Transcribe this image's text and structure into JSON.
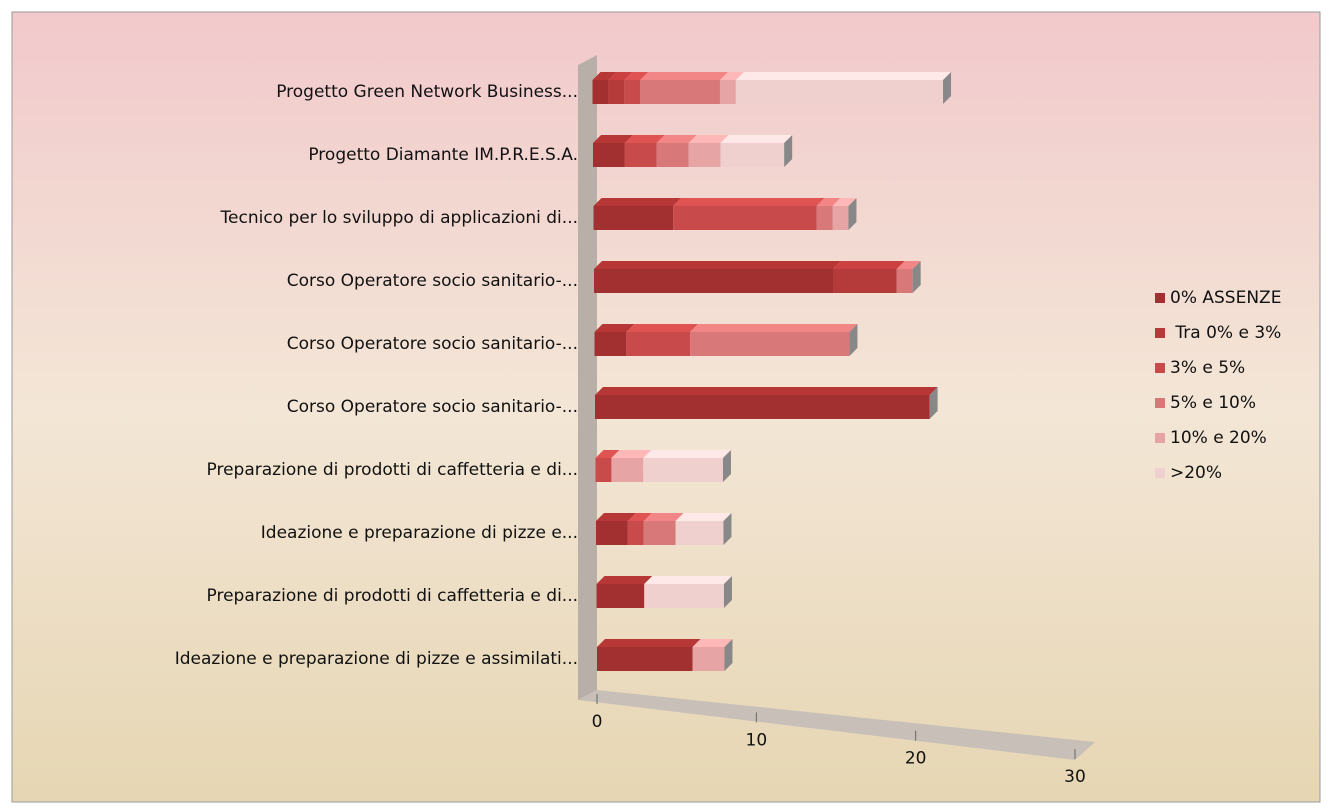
{
  "chart_data": {
    "type": "bar",
    "orientation": "horizontal",
    "stacked": true,
    "categories": [
      "Progetto Green Network Business...",
      "Progetto Diamante  IM.P.R.E.S.A.",
      "Tecnico per lo sviluppo di applicazioni di...",
      "Corso Operatore socio sanitario-...",
      "Corso Operatore socio sanitario-...",
      "Corso Operatore socio sanitario-...",
      "Preparazione di prodotti di caffetteria e di...",
      "Ideazione e preparazione di pizze e...",
      "Preparazione di prodotti di caffetteria e di...",
      "Ideazione e preparazione di pizze e assimilati..."
    ],
    "series": [
      {
        "name": "0% ASSENZE",
        "color": "#a33030",
        "values": [
          1,
          2,
          5,
          15,
          2,
          21,
          0,
          2,
          3,
          6
        ]
      },
      {
        "name": " Tra 0% e 3%",
        "color": "#b53a3a",
        "values": [
          1,
          0,
          0,
          4,
          0,
          0,
          0,
          0,
          0,
          0
        ]
      },
      {
        "name": "3% e 5%",
        "color": "#c84a4a",
        "values": [
          1,
          2,
          9,
          0,
          4,
          0,
          1,
          1,
          0,
          0
        ]
      },
      {
        "name": "5% e 10%",
        "color": "#d87878",
        "values": [
          5,
          2,
          1,
          1,
          10,
          0,
          0,
          2,
          0,
          0
        ]
      },
      {
        "name": "10% e 20%",
        "color": "#e6a4a4",
        "values": [
          1,
          2,
          1,
          0,
          0,
          0,
          2,
          0,
          0,
          2
        ]
      },
      {
        "name": ">20%",
        "color": "#f0cfcf",
        "values": [
          13,
          4,
          0,
          0,
          0,
          0,
          5,
          3,
          5,
          0
        ]
      }
    ],
    "xlim": [
      0,
      30
    ],
    "xticks": [
      0,
      10,
      20,
      30
    ],
    "legend": "right"
  }
}
